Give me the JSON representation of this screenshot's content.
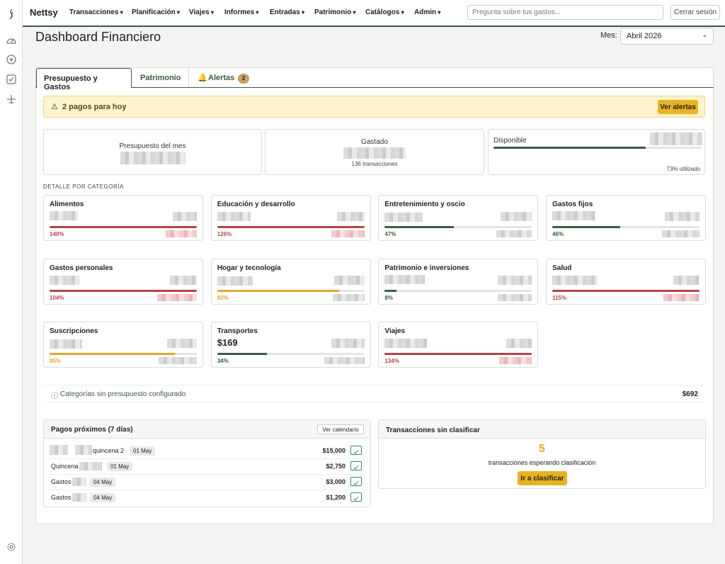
{
  "nav": {
    "brand": "Nettsy",
    "menu": [
      "Transacciones",
      "Planificación",
      "Viajes",
      "Informes",
      "Entradas",
      "Patrimonio",
      "Catálogos",
      "Admin"
    ],
    "search_placeholder": "Pregunta sobre tus gastos...",
    "logout": "Cerrar sesión"
  },
  "header": {
    "title": "Dashboard Financiero",
    "month_label": "Mes:",
    "month": "Abril 2026"
  },
  "tabs": [
    "Presupuesto y Gastos",
    "Patrimonio",
    "Alertas"
  ],
  "alerts_badge": "2",
  "alert": {
    "text": "2 pagos para hoy",
    "button": "Ver alertas"
  },
  "summary": {
    "budget_label": "Presupuesto del mes",
    "spent_label": "Gastado",
    "spent_count": "136 transacciones",
    "available_label": "Disponible",
    "used": {
      "value": 73,
      "label": "73% utilizado"
    },
    "color": "#3d5a45"
  },
  "section_label": "DETALLE POR CATEGORÍA",
  "categories": [
    {
      "name": "Alimentos",
      "used": {
        "value": 140,
        "label": "140%"
      },
      "color": "#b5444b"
    },
    {
      "name": "Educación y desarrollo",
      "used": {
        "value": 126,
        "label": "126%"
      },
      "color": "#b5444b"
    },
    {
      "name": "Entretenimiento y oscio",
      "used": {
        "value": 47,
        "label": "47%"
      },
      "color": "#3d5a45"
    },
    {
      "name": "Gastos fijos",
      "used": {
        "value": 46,
        "label": "46%"
      },
      "color": "#3d5a45"
    },
    {
      "name": "Gastos personales",
      "used": {
        "value": 104,
        "label": "104%"
      },
      "color": "#b5444b"
    },
    {
      "name": "Hogar y tecnología",
      "used": {
        "value": 83,
        "label": "83%"
      },
      "color": "#e0a930"
    },
    {
      "name": "Patrimonio e inversiones",
      "used": {
        "value": 8,
        "label": "8%"
      },
      "color": "#3d5a45"
    },
    {
      "name": "Salud",
      "used": {
        "value": 115,
        "label": "115%"
      },
      "color": "#b5444b"
    },
    {
      "name": "Suscripciones",
      "used": {
        "value": 85,
        "label": "85%"
      },
      "color": "#e0a930"
    },
    {
      "name": "Transportes",
      "amount": "$169",
      "used": {
        "value": 34,
        "label": "34%"
      },
      "color": "#3d5a45"
    },
    {
      "name": "Viajes",
      "used": {
        "value": 134,
        "label": "134%"
      },
      "color": "#b5444b"
    }
  ],
  "unbudgeted": {
    "text": "Categorías sin presupuesto configurado",
    "amount": "$692"
  },
  "upcoming": {
    "title": "Pagos próximos (7 días)",
    "calendar_button": "Ver calendario",
    "payments": [
      {
        "name": "quincena 2",
        "date": "01 May",
        "amount": "$15,000"
      },
      {
        "name": "Quincena",
        "date": "01 May",
        "amount": "$2,750"
      },
      {
        "name": "Gastos",
        "date": "04 May",
        "amount": "$3,000"
      },
      {
        "name": "Gastos",
        "date": "04 May",
        "amount": "$1,200"
      }
    ]
  },
  "unclassified": {
    "title": "Transacciones sin clasificar",
    "count": "5",
    "text": "transacciones esperando clasificación",
    "button": "Ir a clasificar"
  }
}
